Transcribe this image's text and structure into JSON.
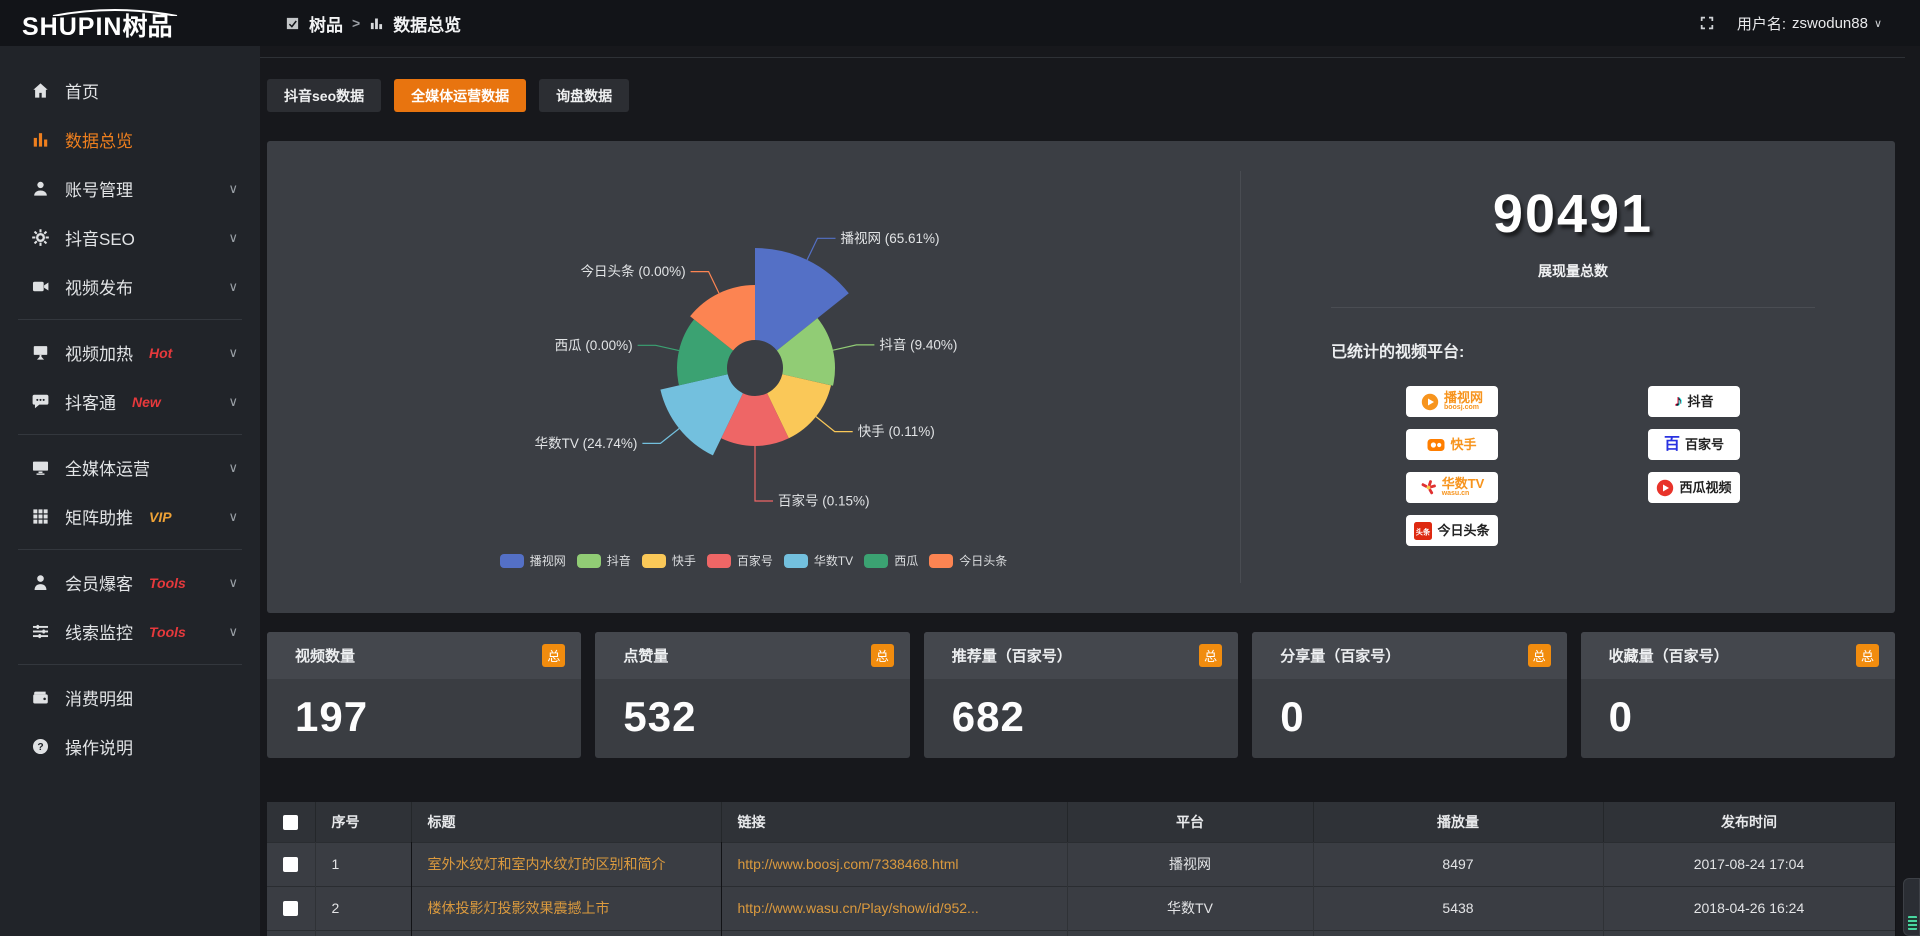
{
  "logo": {
    "brand": "SHUPIN",
    "brand_cn": "树品"
  },
  "breadcrumb": {
    "root": "树品",
    "separator": ">",
    "current": "数据总览"
  },
  "user": {
    "label": "用户名:",
    "name": "zswodun88"
  },
  "sidebar": {
    "items": [
      {
        "icon": "home-icon",
        "label": "首页"
      },
      {
        "icon": "bar-chart-icon",
        "label": "数据总览",
        "active": true
      },
      {
        "icon": "user-icon",
        "label": "账号管理",
        "chevron": true
      },
      {
        "icon": "gear-icon",
        "label": "抖音SEO",
        "chevron": true
      },
      {
        "icon": "video-icon",
        "label": "视频发布",
        "chevron": true
      },
      {
        "divider": true
      },
      {
        "icon": "screen-icon",
        "label": "视频加热",
        "badge": "Hot",
        "badge_style": "red",
        "chevron": true
      },
      {
        "icon": "chat-icon",
        "label": "抖客通",
        "badge": "New",
        "badge_style": "red",
        "chevron": true
      },
      {
        "divider": true
      },
      {
        "icon": "monitor-icon",
        "label": "全媒体运营",
        "chevron": true
      },
      {
        "icon": "grid-icon",
        "label": "矩阵助推",
        "badge": "VIP",
        "badge_style": "orange",
        "chevron": true
      },
      {
        "divider": true
      },
      {
        "icon": "member-icon",
        "label": "会员爆客",
        "badge": "Tools",
        "badge_style": "red",
        "chevron": true
      },
      {
        "icon": "sliders-icon",
        "label": "线索监控",
        "badge": "Tools",
        "badge_style": "red",
        "chevron": true
      },
      {
        "divider": true
      },
      {
        "icon": "wallet-icon",
        "label": "消费明细"
      },
      {
        "icon": "help-icon",
        "label": "操作说明"
      }
    ]
  },
  "tabs": [
    {
      "label": "抖音seo数据",
      "active": false
    },
    {
      "label": "全媒体运营数据",
      "active": true
    },
    {
      "label": "询盘数据",
      "active": false
    }
  ],
  "chart_data": {
    "type": "pie",
    "variant": "nightingale-rose",
    "start_angle_deg": 0,
    "direction": "clockwise",
    "inner_radius_px": 28,
    "legend_position": "bottom",
    "items": [
      {
        "name": "播视网",
        "value_pct": 65.61,
        "color": "#5470c6",
        "radius_px": 120
      },
      {
        "name": "抖音",
        "value_pct": 9.4,
        "color": "#91cc75",
        "radius_px": 80
      },
      {
        "name": "快手",
        "value_pct": 0.11,
        "color": "#fac858",
        "radius_px": 78
      },
      {
        "name": "百家号",
        "value_pct": 0.15,
        "color": "#ee6666",
        "radius_px": 78
      },
      {
        "name": "华数TV",
        "value_pct": 24.74,
        "color": "#73c0de",
        "radius_px": 97
      },
      {
        "name": "西瓜",
        "value_pct": 0.0,
        "color": "#3ba272",
        "radius_px": 78
      },
      {
        "name": "今日头条",
        "value_pct": 0.0,
        "color": "#fc8452",
        "radius_px": 83
      }
    ]
  },
  "summary": {
    "total": "90491",
    "total_label": "展现量总数",
    "platforms_title": "已统计的视频平台:",
    "platforms": [
      {
        "name": "播视网",
        "sub": "boosj.com",
        "logo": "boosj-logo"
      },
      {
        "name": "抖音",
        "logo": "douyin-logo"
      },
      {
        "name": "快手",
        "logo": "kuaishou-logo"
      },
      {
        "name": "百家号",
        "logo": "baijiahao-logo"
      },
      {
        "name": "华数TV",
        "sub": "wasu.cn",
        "logo": "wasu-logo"
      },
      {
        "name": "西瓜视频",
        "logo": "xigua-logo"
      },
      {
        "name": "今日头条",
        "logo": "toutiao-logo"
      }
    ]
  },
  "stat_cards": {
    "badge": "总",
    "cards": [
      {
        "label": "视频数量",
        "value": "197"
      },
      {
        "label": "点赞量",
        "value": "532"
      },
      {
        "label": "推荐量（百家号）",
        "value": "682"
      },
      {
        "label": "分享量（百家号）",
        "value": "0"
      },
      {
        "label": "收藏量（百家号）",
        "value": "0"
      }
    ]
  },
  "table": {
    "columns": [
      "序号",
      "标题",
      "链接",
      "平台",
      "播放量",
      "发布时间"
    ],
    "rows": [
      {
        "no": "1",
        "title": "室外水纹灯和室内水纹灯的区别和简介",
        "link": "http://www.boosj.com/7338468.html",
        "platform": "播视网",
        "plays": "8497",
        "time": "2017-08-24 17:04"
      },
      {
        "no": "2",
        "title": "楼体投影灯投影效果震撼上市",
        "link": "http://www.wasu.cn/Play/show/id/952...",
        "platform": "华数TV",
        "plays": "5438",
        "time": "2018-04-26 16:24"
      },
      {
        "no": "",
        "title": "",
        "link": "",
        "platform": "",
        "plays": "",
        "time": ""
      }
    ]
  },
  "colors": {
    "accent_orange": "#e8740f",
    "badge_orange": "#f18c0e",
    "link_orange": "#db9a3e",
    "hot_red": "#e6393c",
    "vip_orange": "#eea236"
  }
}
